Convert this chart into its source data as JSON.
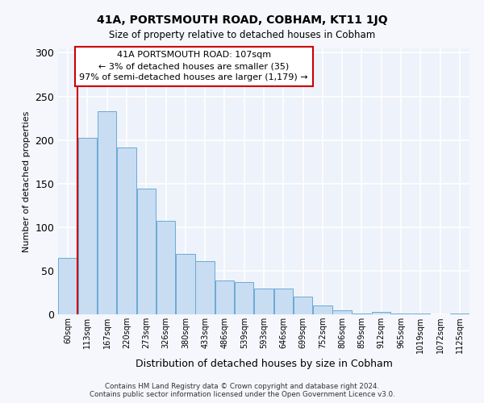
{
  "title": "41A, PORTSMOUTH ROAD, COBHAM, KT11 1JQ",
  "subtitle": "Size of property relative to detached houses in Cobham",
  "xlabel": "Distribution of detached houses by size in Cobham",
  "ylabel": "Number of detached properties",
  "bar_color": "#c8ddf2",
  "bar_edge_color": "#6aaad4",
  "background_color": "#eef2fa",
  "fig_background": "#f5f7fc",
  "annotation_box_color": "#cc0000",
  "annotation_text_lines": [
    "41A PORTSMOUTH ROAD: 107sqm",
    "← 3% of detached houses are smaller (35)",
    "97% of semi-detached houses are larger (1,179) →"
  ],
  "marker_line_color": "#cc0000",
  "categories": [
    "60sqm",
    "113sqm",
    "167sqm",
    "220sqm",
    "273sqm",
    "326sqm",
    "380sqm",
    "433sqm",
    "486sqm",
    "539sqm",
    "593sqm",
    "646sqm",
    "699sqm",
    "752sqm",
    "806sqm",
    "859sqm",
    "912sqm",
    "965sqm",
    "1019sqm",
    "1072sqm",
    "1125sqm"
  ],
  "values": [
    65,
    202,
    233,
    191,
    144,
    107,
    69,
    61,
    39,
    37,
    30,
    30,
    20,
    10,
    5,
    1,
    3,
    1,
    1,
    0,
    1
  ],
  "ylim": [
    0,
    305
  ],
  "yticks": [
    0,
    50,
    100,
    150,
    200,
    250,
    300
  ],
  "footer1": "Contains HM Land Registry data © Crown copyright and database right 2024.",
  "footer2": "Contains public sector information licensed under the Open Government Licence v3.0."
}
